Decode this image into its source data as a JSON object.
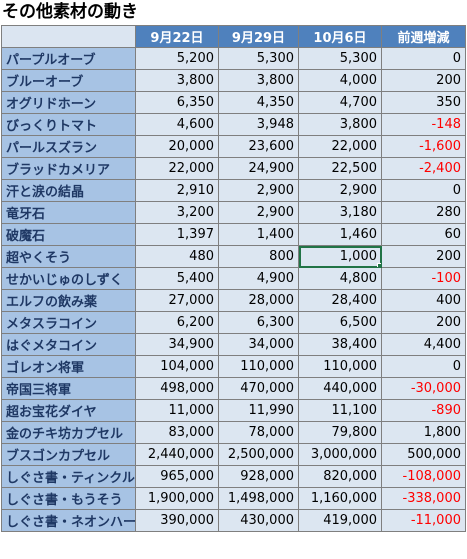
{
  "title": "その他素材の動き",
  "headers": [
    "",
    "9月22日",
    "9月29日",
    "10月6日",
    "前週増減"
  ],
  "rows": [
    {
      "name": "パープルオーブ",
      "v1": "5,200",
      "v2": "5,300",
      "v3": "5,300",
      "diff": "0"
    },
    {
      "name": "ブルーオーブ",
      "v1": "3,800",
      "v2": "3,800",
      "v3": "4,000",
      "diff": "200"
    },
    {
      "name": "オグリドホーン",
      "v1": "6,350",
      "v2": "4,350",
      "v3": "4,700",
      "diff": "350"
    },
    {
      "name": "びっくりトマト",
      "v1": "4,600",
      "v2": "3,948",
      "v3": "3,800",
      "diff": "-148"
    },
    {
      "name": "パールスズラン",
      "v1": "20,000",
      "v2": "23,600",
      "v3": "22,000",
      "diff": "-1,600"
    },
    {
      "name": "ブラッドカメリア",
      "v1": "22,000",
      "v2": "24,900",
      "v3": "22,500",
      "diff": "-2,400"
    },
    {
      "name": "汗と涙の結晶",
      "v1": "2,910",
      "v2": "2,900",
      "v3": "2,900",
      "diff": "0"
    },
    {
      "name": "竜牙石",
      "v1": "3,200",
      "v2": "2,900",
      "v3": "3,180",
      "diff": "280"
    },
    {
      "name": "破魔石",
      "v1": "1,397",
      "v2": "1,400",
      "v3": "1,460",
      "diff": "60"
    },
    {
      "name": "超やくそう",
      "v1": "480",
      "v2": "800",
      "v3": "1,000",
      "diff": "200"
    },
    {
      "name": "せかいじゅのしずく",
      "v1": "5,400",
      "v2": "4,900",
      "v3": "4,800",
      "diff": "-100"
    },
    {
      "name": "エルフの飲み薬",
      "v1": "27,000",
      "v2": "28,000",
      "v3": "28,400",
      "diff": "400"
    },
    {
      "name": "メタスラコイン",
      "v1": "6,200",
      "v2": "6,300",
      "v3": "6,500",
      "diff": "200"
    },
    {
      "name": "はぐメタコイン",
      "v1": "34,900",
      "v2": "34,000",
      "v3": "38,400",
      "diff": "4,400"
    },
    {
      "name": "ゴレオン将軍",
      "v1": "104,000",
      "v2": "110,000",
      "v3": "110,000",
      "diff": "0"
    },
    {
      "name": "帝国三将軍",
      "v1": "498,000",
      "v2": "470,000",
      "v3": "440,000",
      "diff": "-30,000"
    },
    {
      "name": "超お宝花ダイヤ",
      "v1": "11,000",
      "v2": "11,990",
      "v3": "11,100",
      "diff": "-890"
    },
    {
      "name": "金のチキ坊カプセル",
      "v1": "83,000",
      "v2": "78,000",
      "v3": "79,800",
      "diff": "1,800"
    },
    {
      "name": "ブスゴンカプセル",
      "v1": "2,440,000",
      "v2": "2,500,000",
      "v3": "3,000,000",
      "diff": "500,000"
    },
    {
      "name": "しぐさ書・ティンクル",
      "v1": "965,000",
      "v2": "928,000",
      "v3": "820,000",
      "diff": "-108,000"
    },
    {
      "name": "しぐさ書・もうそう",
      "v1": "1,900,000",
      "v2": "1,498,000",
      "v3": "1,160,000",
      "diff": "-338,000"
    },
    {
      "name": "しぐさ書・ネオンハート",
      "v1": "390,000",
      "v2": "430,000",
      "v3": "419,000",
      "diff": "-11,000"
    }
  ],
  "colors": {
    "header_bg": "#4f81bd",
    "name_bg": "#a7c3e4",
    "cell_bg": "#dce6f1",
    "negative": "#ff0000"
  },
  "selected_cell": {
    "row": 9,
    "column": "10月6日"
  }
}
